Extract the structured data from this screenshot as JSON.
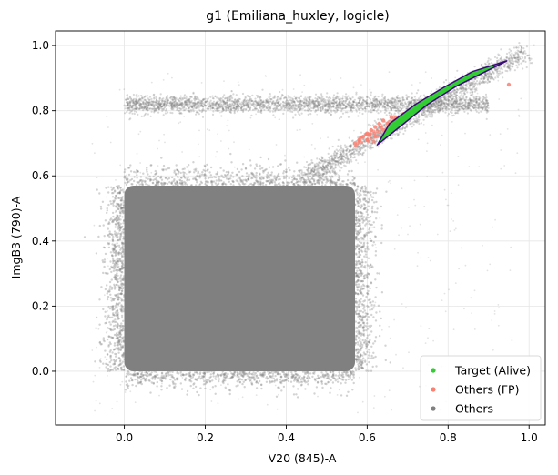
{
  "chart_data": {
    "type": "scatter",
    "title": "g1 (Emiliana_huxley, logicle)",
    "xlabel": "V20 (845)-A",
    "ylabel": "ImgB3 (790)-A",
    "xlim": [
      -0.17,
      1.04
    ],
    "ylim": [
      -0.165,
      1.045
    ],
    "x_ticks": [
      0.0,
      0.2,
      0.4,
      0.6,
      0.8,
      1.0
    ],
    "x_tick_labels": [
      "0.0",
      "0.2",
      "0.4",
      "0.6",
      "0.8",
      "1.0"
    ],
    "y_ticks": [
      0.0,
      0.2,
      0.4,
      0.6,
      0.8,
      1.0
    ],
    "y_tick_labels": [
      "0.0",
      "0.2",
      "0.4",
      "0.6",
      "0.8",
      "1.0"
    ],
    "grid": true,
    "legend_position": "lower-right",
    "series": [
      {
        "name": "Target (Alive)",
        "color": "#32cd32",
        "marker": "dot",
        "region": "diagonal band from (0.63, 0.70) to (0.95, 0.95)"
      },
      {
        "name": "Others (FP)",
        "color": "#fa8072",
        "marker": "dot",
        "sample_points": [
          [
            0.57,
            0.7
          ],
          [
            0.58,
            0.71
          ],
          [
            0.59,
            0.72
          ],
          [
            0.6,
            0.73
          ],
          [
            0.61,
            0.74
          ],
          [
            0.62,
            0.75
          ],
          [
            0.63,
            0.76
          ],
          [
            0.64,
            0.77
          ],
          [
            0.65,
            0.76
          ],
          [
            0.66,
            0.78
          ],
          [
            0.67,
            0.78
          ],
          [
            0.68,
            0.77
          ],
          [
            0.69,
            0.79
          ],
          [
            0.7,
            0.79
          ],
          [
            0.71,
            0.8
          ],
          [
            0.6,
            0.71
          ],
          [
            0.62,
            0.72
          ],
          [
            0.64,
            0.74
          ],
          [
            0.66,
            0.75
          ],
          [
            0.95,
            0.88
          ]
        ]
      },
      {
        "name": "Others",
        "color": "#808080",
        "marker": "dot",
        "regions": [
          {
            "label": "main population",
            "x_range": [
              0.0,
              0.57
            ],
            "y_range": [
              0.0,
              0.57
            ]
          },
          {
            "label": "upper band",
            "x_range": [
              0.0,
              0.9
            ],
            "y_range": [
              0.78,
              0.86
            ]
          },
          {
            "label": "diagonal",
            "from": [
              0.45,
              0.6
            ],
            "to": [
              0.99,
              0.98
            ]
          }
        ]
      }
    ],
    "gate": {
      "name": "g1",
      "color": "#3b0a7a",
      "fill": "#32cd32",
      "vertices": [
        [
          0.625,
          0.695
        ],
        [
          0.655,
          0.76
        ],
        [
          0.72,
          0.82
        ],
        [
          0.79,
          0.872
        ],
        [
          0.86,
          0.92
        ],
        [
          0.945,
          0.953
        ],
        [
          0.9,
          0.925
        ],
        [
          0.82,
          0.875
        ],
        [
          0.75,
          0.82
        ],
        [
          0.69,
          0.76
        ],
        [
          0.645,
          0.715
        ]
      ]
    }
  }
}
